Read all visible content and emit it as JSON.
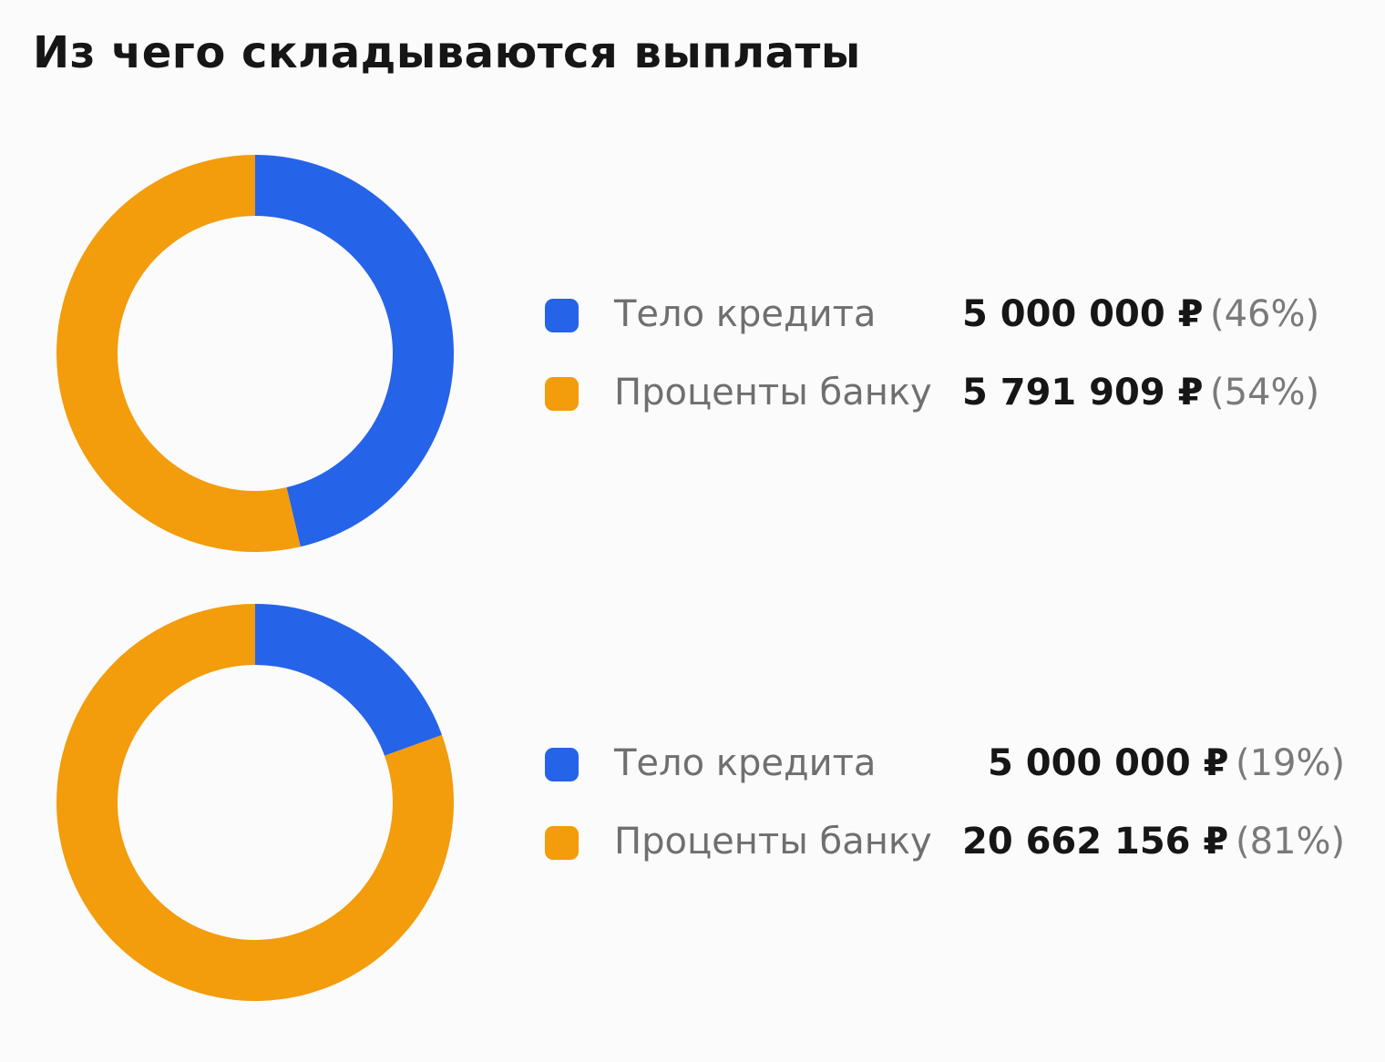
{
  "title": "Из чего складываются выплаты",
  "colors": {
    "principal": "#2563e8",
    "interest": "#f39c0c",
    "background": "#fbfbfb"
  },
  "chart_data": [
    {
      "type": "pie",
      "variant": "donut",
      "categories": [
        "Тело кредита",
        "Проценты банку"
      ],
      "values": [
        5000000,
        5791909
      ],
      "legend": [
        {
          "label": "Тело кредита",
          "amount": "5 000 000 ₽",
          "percent": "(46%)",
          "color": "#2563e8"
        },
        {
          "label": "Проценты банку",
          "amount": "5 791 909 ₽",
          "percent": "(54%)",
          "color": "#f39c0c"
        }
      ],
      "legend_position": "right"
    },
    {
      "type": "pie",
      "variant": "donut",
      "categories": [
        "Тело кредита",
        "Проценты банку"
      ],
      "values": [
        5000000,
        20662156
      ],
      "legend": [
        {
          "label": "Тело кредита",
          "amount": "5 000 000 ₽",
          "percent": "(19%)",
          "color": "#2563e8"
        },
        {
          "label": "Проценты банку",
          "amount": "20 662 156 ₽",
          "percent": "(81%)",
          "color": "#f39c0c"
        }
      ],
      "legend_position": "right"
    }
  ]
}
